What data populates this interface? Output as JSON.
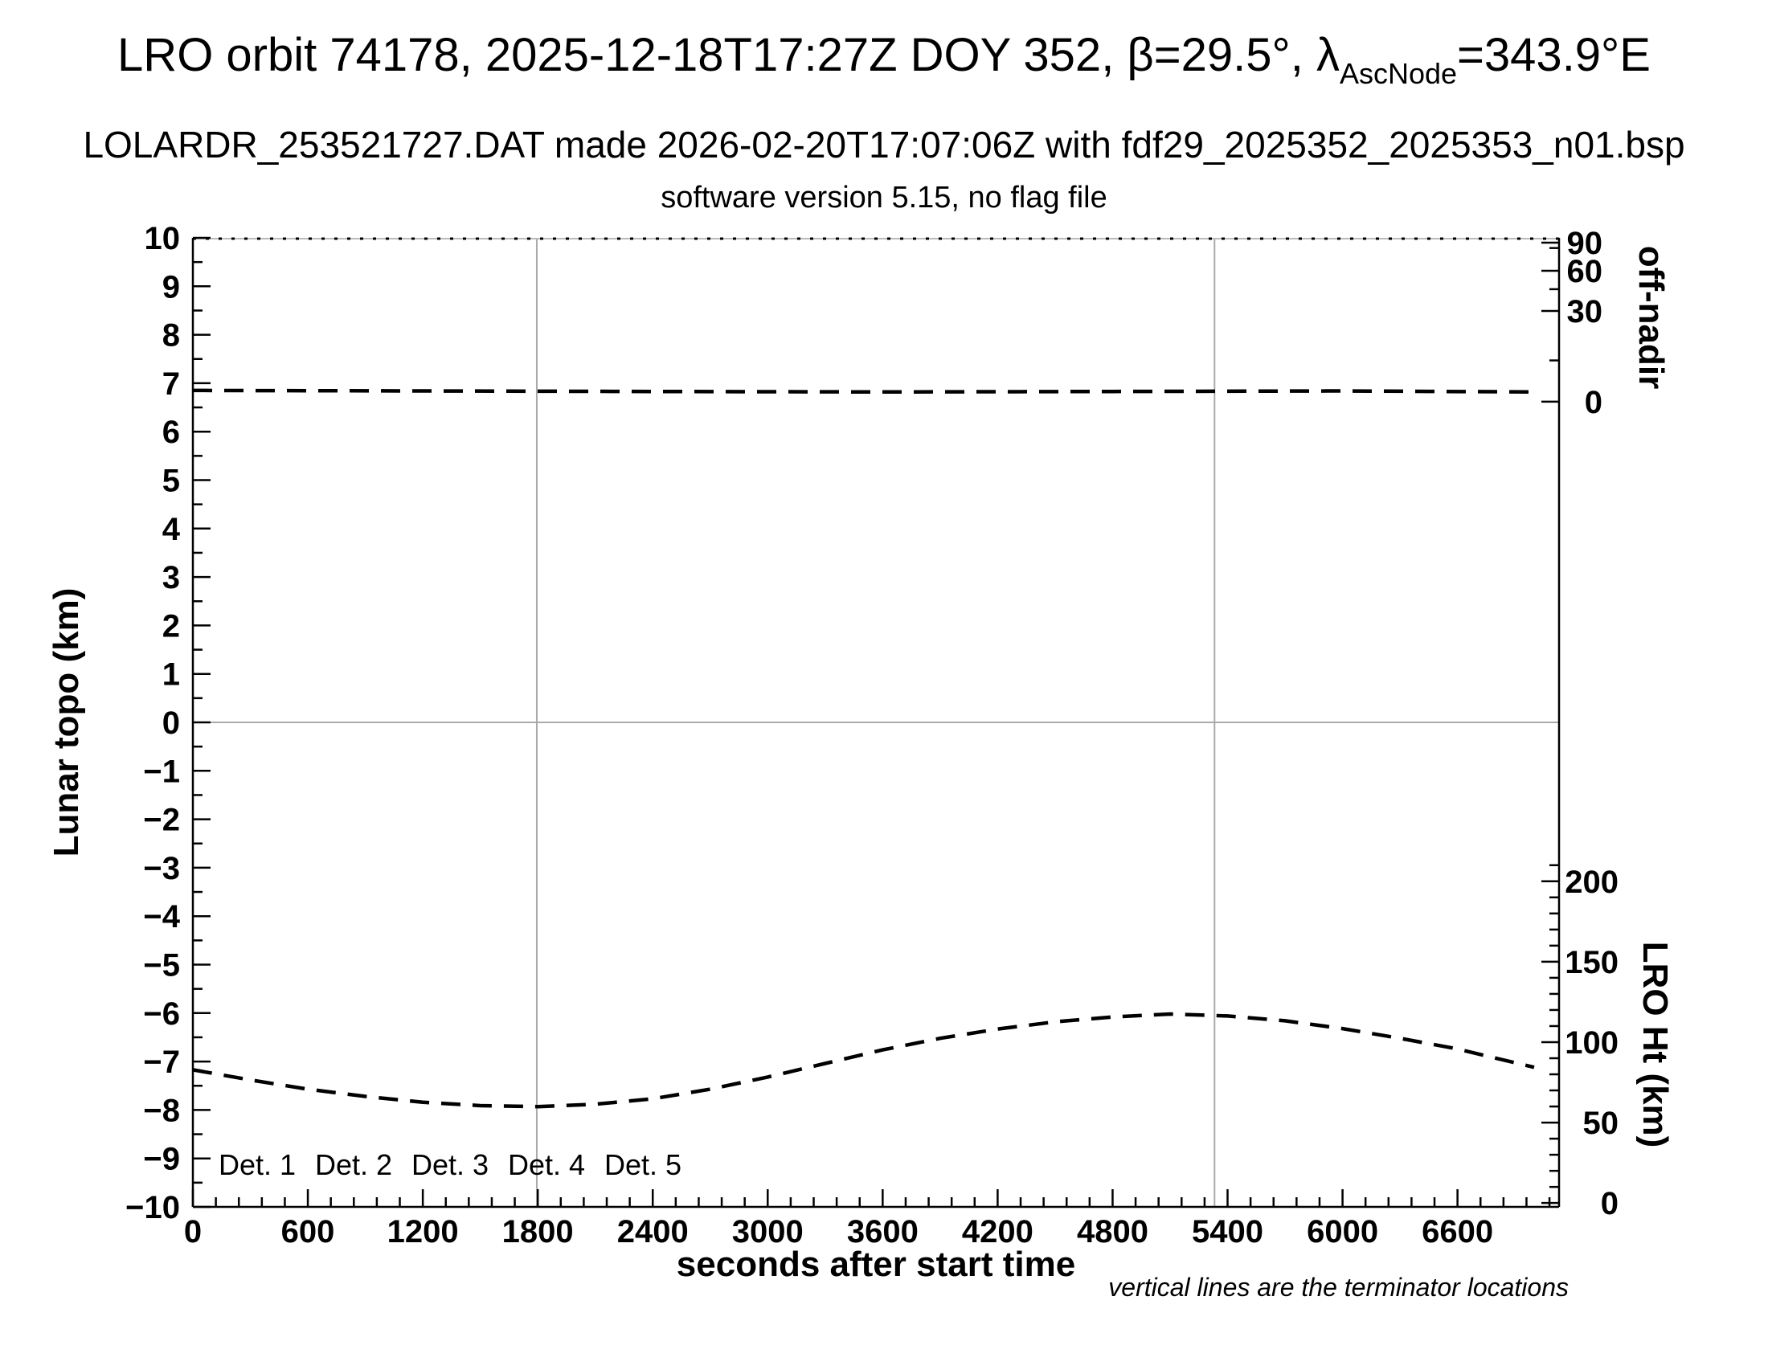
{
  "header": {
    "title_prefix": "LRO orbit 74178, 2025-12-18T17:27Z DOY 352, β=29.5°, λ",
    "title_sub": "AscNode",
    "title_suffix": "=343.9°E",
    "line2": "LOLARDR_253521727.DAT made 2026-02-20T17:07:06Z with fdf29_2025352_2025353_n01.bsp",
    "line3": "software version 5.15, no flag file"
  },
  "chart_data": {
    "type": "line",
    "title": "LRO orbit 74178, 2025-12-18T17:27Z DOY 352, β=29.5°, λAscNode=343.9°E",
    "subtitle": "LOLARDR_253521727.DAT made 2026-02-20T17:07:06Z with fdf29_2025352_2025353_n01.bsp",
    "subtitle2": "software version 5.15, no flag file",
    "x_axis": {
      "label": "seconds after start time",
      "min": 0,
      "max": 7130,
      "major_ticks": [
        0,
        600,
        1200,
        1800,
        2400,
        3000,
        3600,
        4200,
        4800,
        5400,
        6000,
        6600
      ],
      "minor_tick_step": 120
    },
    "y_left": {
      "label": "Lunar topo (km)",
      "min": -10,
      "max": 10,
      "major_tick_step": 1,
      "minor_tick_step": 0.5
    },
    "y_right_top": {
      "label": "off-nadir",
      "unit": "degrees",
      "ticks": [
        {
          "value": 90,
          "topo_pos": 9.9
        },
        {
          "value": 60,
          "topo_pos": 9.32
        },
        {
          "value": 30,
          "topo_pos": 8.49
        },
        {
          "value": 0,
          "topo_pos": 6.62
        }
      ],
      "minor_ticks_topo_pos": [
        9.79,
        8.94,
        7.47
      ]
    },
    "y_right_bottom": {
      "label": "LRO Ht (km)",
      "ticks": [
        {
          "value": 200,
          "topo_pos": -3.28
        },
        {
          "value": 150,
          "topo_pos": -4.94
        },
        {
          "value": 100,
          "topo_pos": -6.6
        },
        {
          "value": 50,
          "topo_pos": -8.26
        },
        {
          "value": 0,
          "topo_pos": -9.92
        }
      ],
      "minor_step_km": 10,
      "minor_max_km": 210,
      "topo_at_0_km": -9.92,
      "topo_per_km": 0.0332
    },
    "reference_lines": {
      "horizontal_topo": 0,
      "terminator_seconds": [
        1795,
        5332
      ]
    },
    "series": [
      {
        "name": "off-nadir-angle",
        "color": "#000000",
        "style": "dashed",
        "dash": [
          24,
          15
        ],
        "width": 4.5,
        "points": [
          [
            0,
            6.85
          ],
          [
            1200,
            6.84
          ],
          [
            2400,
            6.83
          ],
          [
            3600,
            6.82
          ],
          [
            4800,
            6.83
          ],
          [
            6000,
            6.84
          ],
          [
            7000,
            6.82
          ]
        ]
      },
      {
        "name": "lro-height",
        "color": "#000000",
        "style": "dashed",
        "dash": [
          24,
          15
        ],
        "width": 4.5,
        "points": [
          [
            0,
            -7.17
          ],
          [
            300,
            -7.38
          ],
          [
            600,
            -7.57
          ],
          [
            900,
            -7.72
          ],
          [
            1200,
            -7.84
          ],
          [
            1500,
            -7.91
          ],
          [
            1800,
            -7.93
          ],
          [
            2100,
            -7.88
          ],
          [
            2400,
            -7.77
          ],
          [
            2700,
            -7.57
          ],
          [
            3000,
            -7.32
          ],
          [
            3300,
            -7.04
          ],
          [
            3600,
            -6.76
          ],
          [
            3900,
            -6.52
          ],
          [
            4200,
            -6.33
          ],
          [
            4500,
            -6.18
          ],
          [
            4800,
            -6.08
          ],
          [
            5100,
            -6.02
          ],
          [
            5400,
            -6.06
          ],
          [
            5700,
            -6.16
          ],
          [
            6000,
            -6.32
          ],
          [
            6300,
            -6.52
          ],
          [
            6600,
            -6.74
          ],
          [
            6800,
            -6.93
          ],
          [
            7000,
            -7.12
          ]
        ]
      }
    ],
    "legend": [
      {
        "label": "Det. 1",
        "color": "#000000"
      },
      {
        "label": "Det. 2",
        "color": "#0000ff"
      },
      {
        "label": "Det. 3",
        "color": "#00ee00"
      },
      {
        "label": "Det. 4",
        "color": "#ffa500"
      },
      {
        "label": "Det. 5",
        "color": "#ff0000"
      }
    ],
    "note": "vertical lines are the terminator locations"
  },
  "colors": {
    "axis": "#000000",
    "grid": "#aaaaaa",
    "top_border": "#bbbbbb",
    "background": "#ffffff"
  }
}
